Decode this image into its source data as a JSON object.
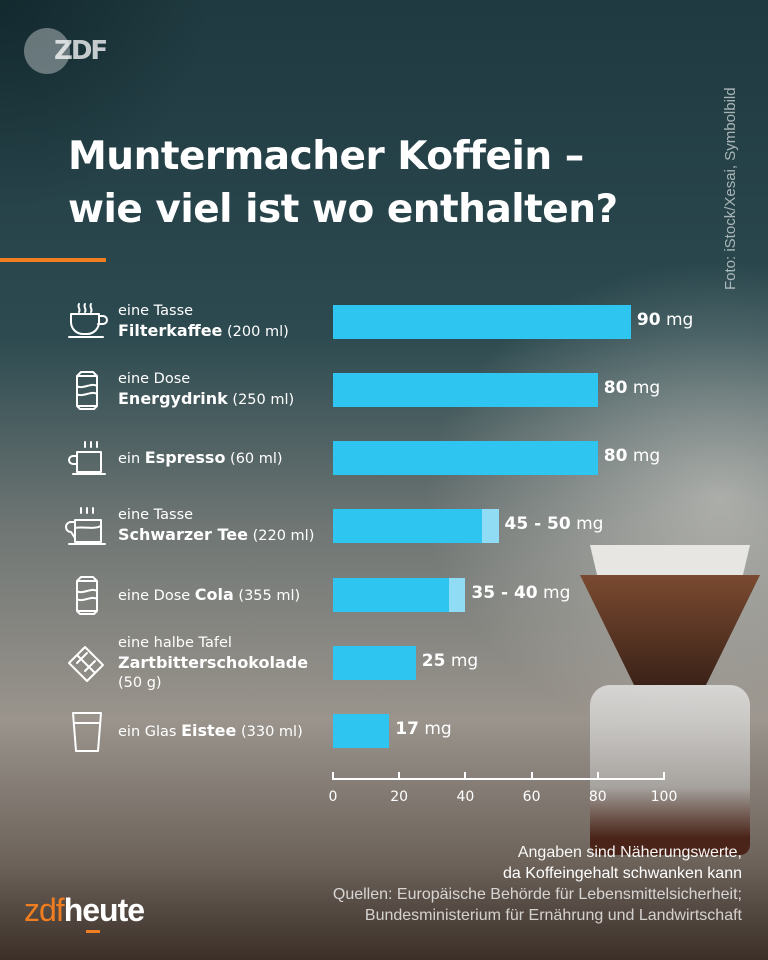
{
  "header": {
    "logo": "ZDF",
    "title_line1": "Muntermacher Koffein –",
    "title_line2": "wie viel ist wo enthalten?",
    "photo_credit": "Foto: iStock/Xesai, Symbolbild"
  },
  "chart_data": {
    "type": "bar",
    "orientation": "horizontal",
    "unit": "mg",
    "xlim": [
      0,
      100
    ],
    "xticks": [
      "0",
      "20",
      "40",
      "60",
      "80",
      "100"
    ],
    "items": [
      {
        "icon": "coffee-cup-icon",
        "prefix": "eine Tasse",
        "name": "Filterkaffee",
        "amount": "(200 ml)",
        "min": 90,
        "max": 90,
        "value_num": "90",
        "value_unit": "mg"
      },
      {
        "icon": "can-icon",
        "prefix": "eine Dose",
        "name": "Energydrink",
        "amount": "(250 ml)",
        "min": 80,
        "max": 80,
        "value_num": "80",
        "value_unit": "mg"
      },
      {
        "icon": "espresso-cup-icon",
        "prefix": "ein",
        "name": "Espresso",
        "amount": "(60 ml)",
        "min": 80,
        "max": 80,
        "value_num": "80",
        "value_unit": "mg"
      },
      {
        "icon": "tea-cup-icon",
        "prefix": "eine Tasse",
        "name": "Schwarzer Tee",
        "amount": "(220 ml)",
        "min": 45,
        "max": 50,
        "value_num": "45 - 50",
        "value_unit": "mg"
      },
      {
        "icon": "can-icon",
        "prefix": "eine Dose",
        "name": "Cola",
        "amount": "(355 ml)",
        "min": 35,
        "max": 40,
        "value_num": "35 - 40",
        "value_unit": "mg"
      },
      {
        "icon": "chocolate-icon",
        "prefix": "eine halbe Tafel",
        "name": "Zartbitterschokolade",
        "amount": "(50 g)",
        "min": 25,
        "max": 25,
        "value_num": "25",
        "value_unit": "mg"
      },
      {
        "icon": "glass-icon",
        "prefix": "ein Glas",
        "name": "Eistee",
        "amount": "(330 ml)",
        "min": 17,
        "max": 17,
        "value_num": "17",
        "value_unit": "mg"
      }
    ],
    "colors": {
      "bar": "#2ec5f0",
      "range": "#8fdcf4",
      "accent": "#f07d1f"
    }
  },
  "footer": {
    "note1": "Angaben sind Näherungswerte,",
    "note2": "da Koffeingehalt schwanken kann",
    "source1": "Quellen: Europäische Behörde für Lebensmittelsicherheit;",
    "source2": "Bundesministerium für Ernährung und Landwirtschaft",
    "brand_a": "zdf",
    "brand_b": "heute"
  }
}
